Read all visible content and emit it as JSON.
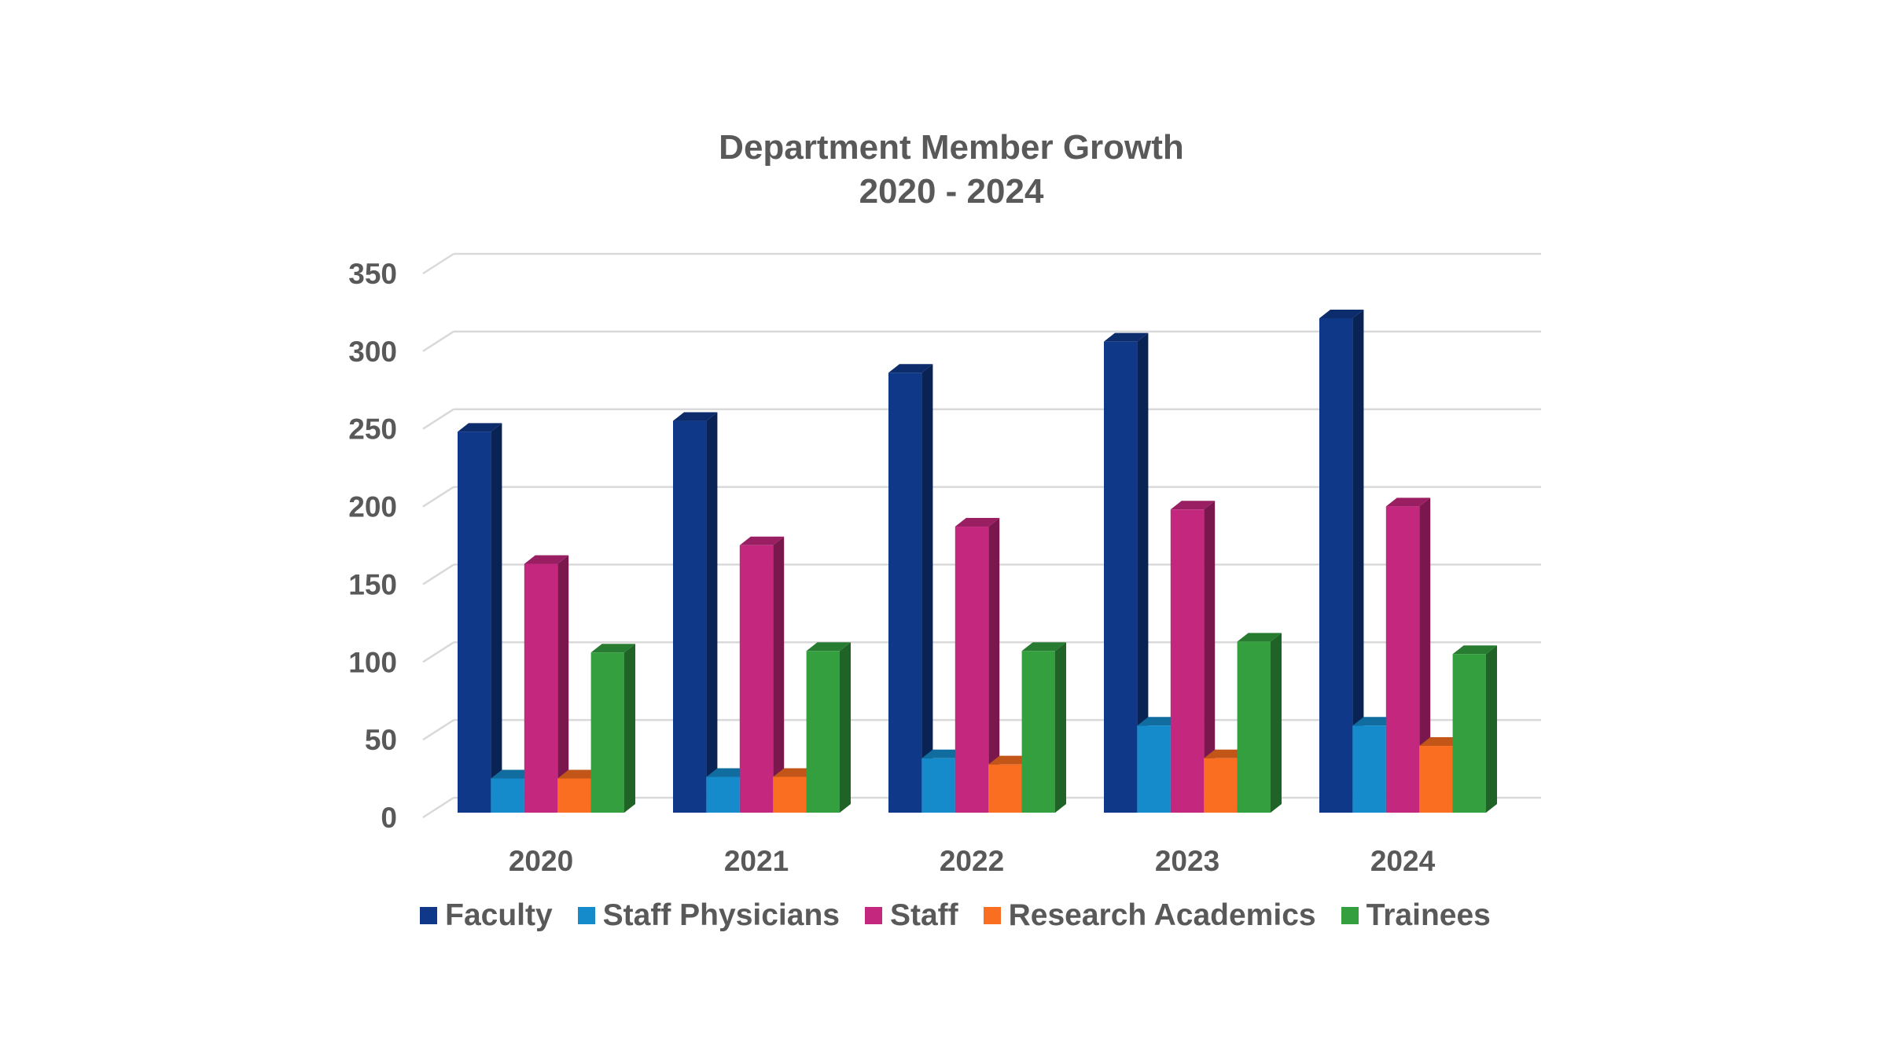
{
  "chart_data": {
    "type": "bar",
    "style": "3d-clustered-column",
    "title": "Department Member Growth",
    "subtitle": "2020 - 2024",
    "xlabel": "",
    "ylabel": "",
    "categories": [
      "2020",
      "2021",
      "2022",
      "2023",
      "2024"
    ],
    "ylim": [
      0,
      350
    ],
    "yticks": [
      "0",
      "50",
      "100",
      "150",
      "200",
      "250",
      "300",
      "350"
    ],
    "grid": true,
    "legend_position": "bottom",
    "series": [
      {
        "name": "Faculty",
        "color": "#0f3889",
        "values": [
          245,
          252,
          283,
          303,
          318
        ]
      },
      {
        "name": "Staff Physicians",
        "color": "#168bcc",
        "values": [
          22,
          23,
          35,
          56,
          56
        ]
      },
      {
        "name": "Staff",
        "color": "#c4277e",
        "values": [
          160,
          172,
          184,
          195,
          197
        ]
      },
      {
        "name": "Research Academics",
        "color": "#f96e20",
        "values": [
          22,
          23,
          31,
          35,
          43
        ]
      },
      {
        "name": "Trainees",
        "color": "#339f3f",
        "values": [
          103,
          104,
          104,
          110,
          102
        ]
      }
    ]
  }
}
